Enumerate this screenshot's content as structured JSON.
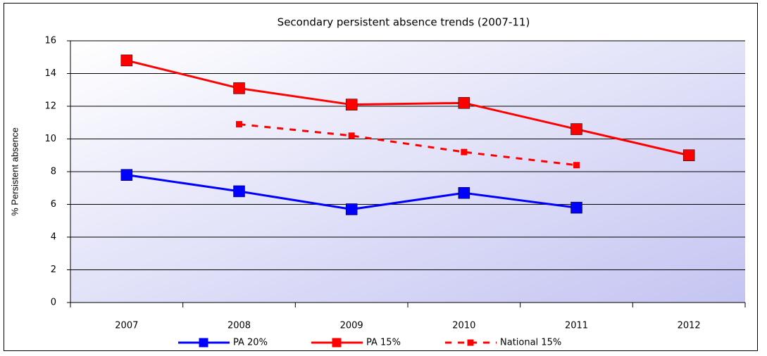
{
  "chart_data": {
    "type": "line",
    "title": "Secondary persistent absence trends (2007-11)",
    "y_label": "% Persistent absence",
    "categories": [
      "2007",
      "2008",
      "2009",
      "2010",
      "2011",
      "2012"
    ],
    "series": [
      {
        "name": "PA 20%",
        "color": "#0000ff",
        "line_style": "solid",
        "values": [
          7.8,
          6.8,
          5.7,
          6.7,
          5.8,
          null
        ]
      },
      {
        "name": "PA 15%",
        "color": "#ff0000",
        "line_style": "solid",
        "values": [
          14.8,
          13.1,
          12.1,
          12.2,
          10.6,
          9.0
        ]
      },
      {
        "name": "National 15%",
        "color": "#ff0000",
        "line_style": "dashed",
        "values": [
          null,
          10.9,
          10.2,
          9.2,
          8.4,
          null
        ]
      }
    ],
    "ylim": [
      0,
      16
    ],
    "yticks": [
      0,
      2,
      4,
      6,
      8,
      10,
      12,
      14,
      16
    ],
    "grid": true,
    "legend": "bottom"
  }
}
